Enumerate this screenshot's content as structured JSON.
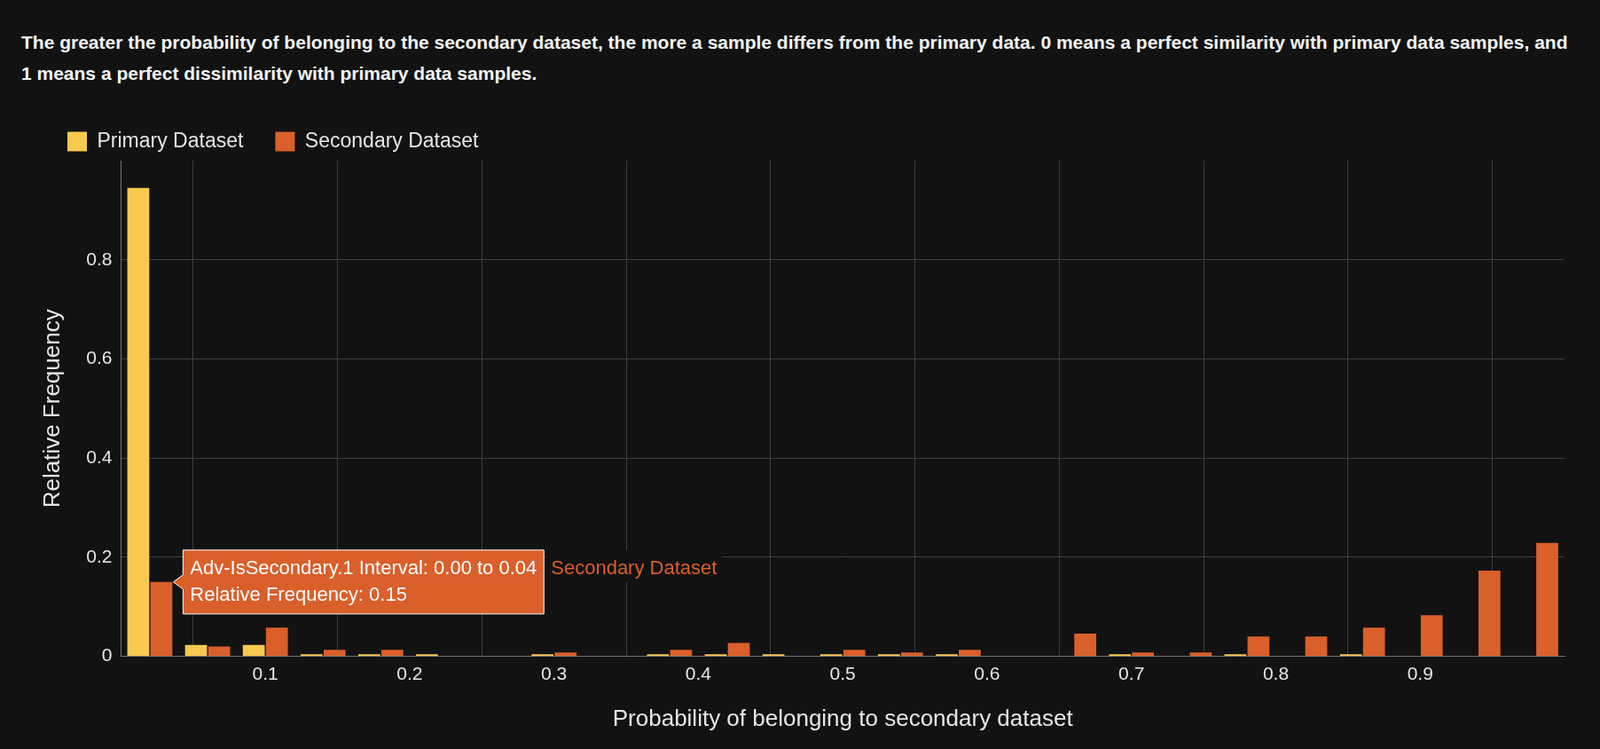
{
  "chart_data": {
    "type": "histogram",
    "title": "The greater the probability of belonging to the secondary dataset, the more a sample differs from the primary data. 0 means a perfect similarity with primary data samples, and 1 means a perfect dissimilarity with primary data samples.",
    "xlabel": "Probability of belonging to secondary dataset",
    "ylabel": "Relative Frequency",
    "bins": [
      0,
      0.04,
      0.08,
      0.12,
      0.16,
      0.2,
      0.24,
      0.28,
      0.32,
      0.36,
      0.4,
      0.44,
      0.48,
      0.52,
      0.56,
      0.6,
      0.64,
      0.68,
      0.72,
      0.76,
      0.8,
      0.84,
      0.88,
      0.92,
      0.96,
      1
    ],
    "series": [
      {
        "name": "Primary Dataset",
        "color": "#f8c94f",
        "values": [
          0.945,
          0.023,
          0.023,
          0.004,
          0.004,
          0.004,
          0,
          0.004,
          0,
          0.004,
          0.004,
          0.004,
          0.004,
          0.004,
          0.004,
          0,
          0,
          0.004,
          0,
          0.004,
          0,
          0.004,
          0,
          0,
          0
        ]
      },
      {
        "name": "Secondary Dataset",
        "color": "#d95f2b",
        "values": [
          0.15,
          0.02,
          0.058,
          0.013,
          0.013,
          0,
          0,
          0.008,
          0,
          0.013,
          0.027,
          0,
          0.013,
          0.008,
          0.013,
          0,
          0.046,
          0.008,
          0.008,
          0.04,
          0.04,
          0.058,
          0.083,
          0.173,
          0.229
        ]
      }
    ],
    "xlim": [
      0,
      1
    ],
    "xticks": [
      0.1,
      0.2,
      0.3,
      0.4,
      0.5,
      0.6,
      0.7,
      0.8,
      0.9
    ],
    "ylim": [
      0,
      1
    ],
    "yticks": [
      0,
      0.2,
      0.4,
      0.6,
      0.8
    ],
    "grid": true,
    "legend": "top-left",
    "annotations": [
      {
        "text": [
          "Adv-IsSecondary.1 Interval: 0.00 to 0.04",
          "Relative Frequency: 0.15"
        ],
        "label": "Secondary Dataset",
        "x": 0.02,
        "y": 0.15
      }
    ]
  }
}
